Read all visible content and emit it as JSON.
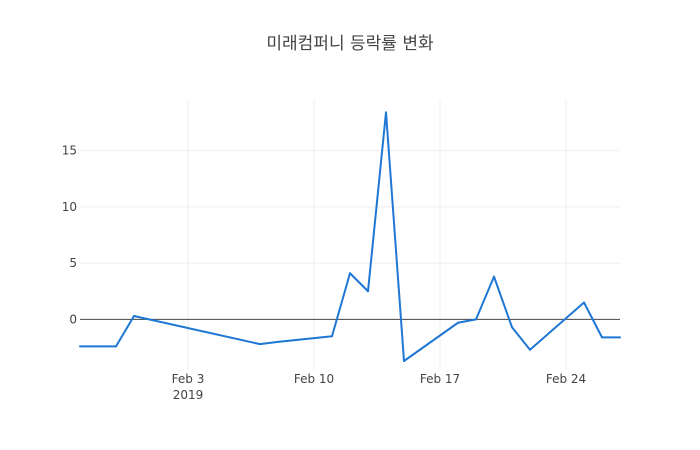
{
  "chart_data": {
    "type": "line",
    "title": "미래컴퍼니 등락률 변화",
    "xlabel": "",
    "ylabel": "",
    "x": [
      "2019-01-28",
      "2019-01-29",
      "2019-01-30",
      "2019-01-31",
      "2019-02-07",
      "2019-02-08",
      "2019-02-11",
      "2019-02-12",
      "2019-02-13",
      "2019-02-14",
      "2019-02-15",
      "2019-02-18",
      "2019-02-19",
      "2019-02-20",
      "2019-02-21",
      "2019-02-22",
      "2019-02-25",
      "2019-02-26",
      "2019-02-27"
    ],
    "series": [
      {
        "values": [
          -2.4,
          -2.4,
          -2.4,
          0.3,
          -2.2,
          -2.0,
          -1.5,
          4.1,
          2.5,
          18.4,
          -3.7,
          -0.3,
          0.0,
          3.8,
          -0.7,
          -2.7,
          1.5,
          -1.6,
          -1.6
        ]
      }
    ],
    "xlim": [
      "2019-01-28",
      "2019-02-27"
    ],
    "ylim": [
      -4.5,
      19.5
    ],
    "xticks": [
      {
        "date": "2019-02-03",
        "label": "Feb 3",
        "sublabel": "2019"
      },
      {
        "date": "2019-02-10",
        "label": "Feb 10",
        "sublabel": ""
      },
      {
        "date": "2019-02-17",
        "label": "Feb 17",
        "sublabel": ""
      },
      {
        "date": "2019-02-24",
        "label": "Feb 24",
        "sublabel": ""
      }
    ],
    "yticks": [
      {
        "value": 0,
        "label": "0"
      },
      {
        "value": 5,
        "label": "5"
      },
      {
        "value": 10,
        "label": "10"
      },
      {
        "value": 15,
        "label": "15"
      }
    ],
    "grid": true,
    "legend": "none",
    "line_color": "#1f77d4"
  }
}
